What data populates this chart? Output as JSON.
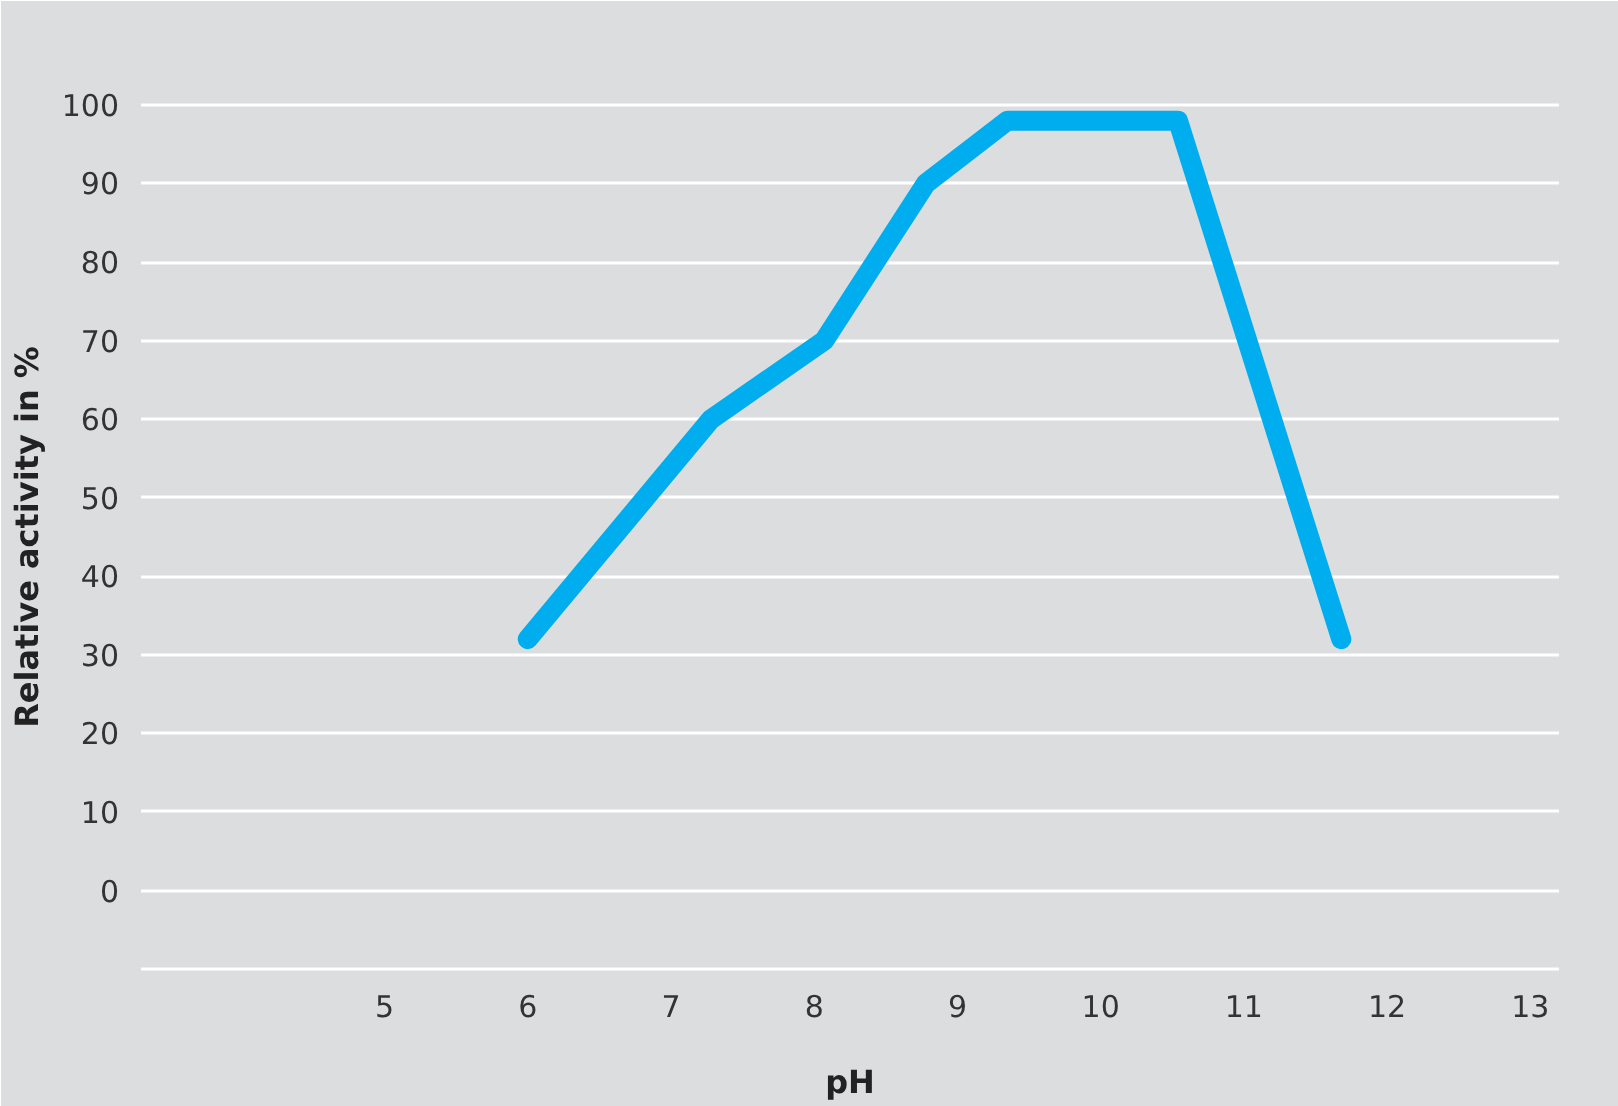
{
  "chart_data": {
    "type": "line",
    "xlabel": "pH",
    "ylabel": "Relative activity in %",
    "x": [
      6.0,
      7.28,
      8.07,
      8.78,
      9.35,
      10.54,
      11.68
    ],
    "series": [
      {
        "color": "#00adef",
        "values": [
          32,
          60,
          70,
          90,
          98,
          98,
          32
        ]
      }
    ],
    "xlim": [
      3.3,
      13.2
    ],
    "xticks": [
      5,
      6,
      7,
      8,
      9,
      10,
      11,
      12,
      13
    ],
    "ylim": [
      -10.5,
      100.5
    ],
    "yticks": [
      {
        "value": -10,
        "label": null
      },
      0,
      10,
      20,
      30,
      40,
      50,
      60,
      70,
      80,
      90,
      100
    ],
    "grid": "y",
    "marker": "none",
    "line_style": "solid"
  }
}
